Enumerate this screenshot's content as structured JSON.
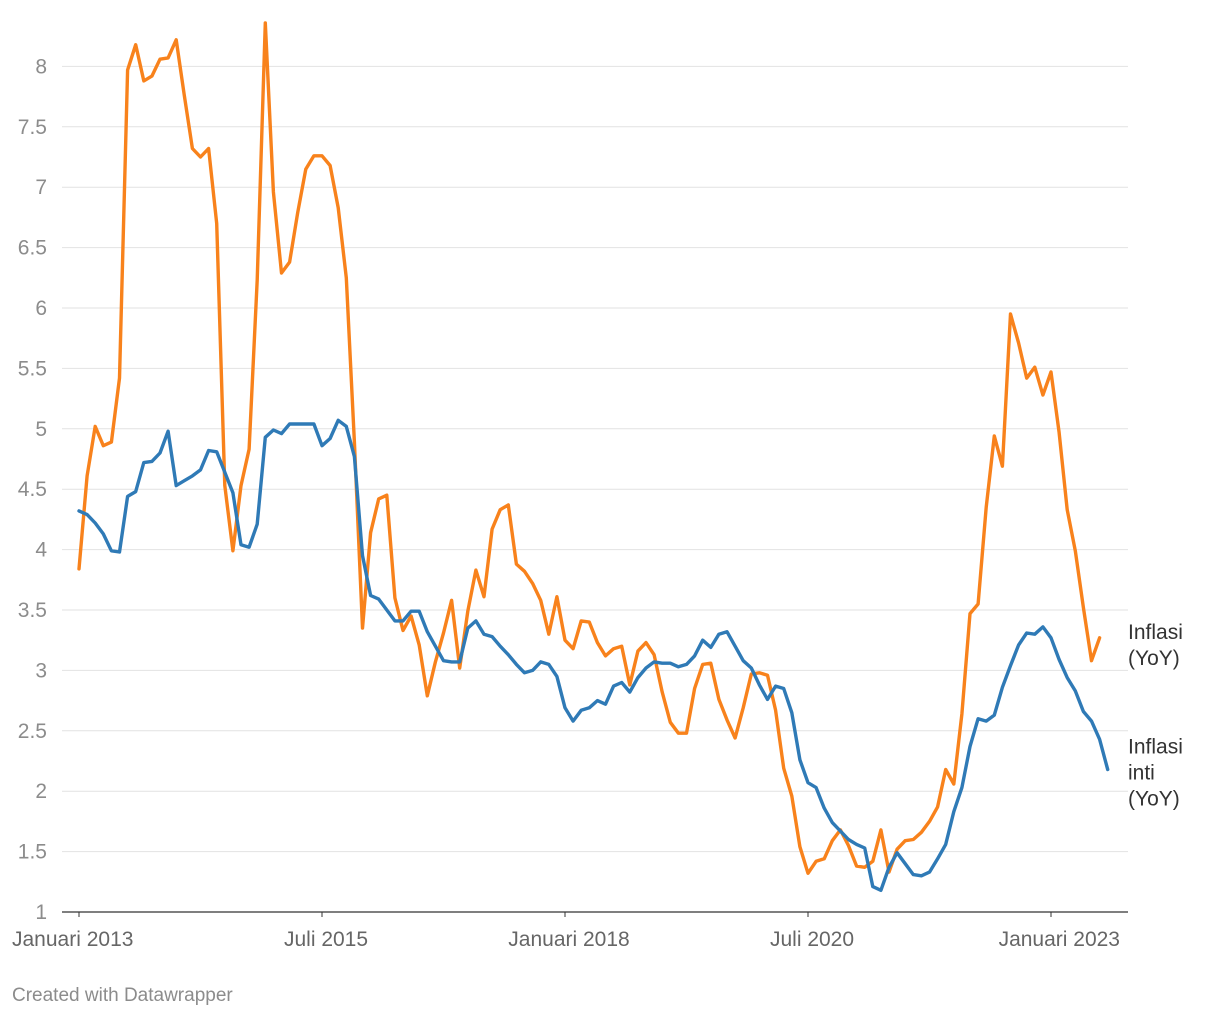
{
  "chart_data": {
    "type": "line",
    "title": "",
    "xlabel": "",
    "ylabel": "",
    "ylim": [
      1,
      8.3
    ],
    "yticks": [
      1,
      1.5,
      2,
      2.5,
      3,
      3.5,
      4,
      4.5,
      5,
      5.5,
      6,
      6.5,
      7,
      7.5,
      8
    ],
    "ytick_labels": [
      "1",
      "1.5",
      "2",
      "2.5",
      "3",
      "3.5",
      "4",
      "4.5",
      "5",
      "5.5",
      "6",
      "6.5",
      "7",
      "7.5",
      "8"
    ],
    "x_start": "2013-01",
    "x_end": "2023-06",
    "xticks": [
      {
        "month_index": 0,
        "label": "Januari 2013"
      },
      {
        "month_index": 30,
        "label": "Juli 2015"
      },
      {
        "month_index": 60,
        "label": "Januari 2018"
      },
      {
        "month_index": 90,
        "label": "Juli 2020"
      },
      {
        "month_index": 120,
        "label": "Januari 2023"
      }
    ],
    "grid": true,
    "series": [
      {
        "name": "Inflasi (YoY)",
        "label_lines": [
          "Inflasi",
          "(YoY)"
        ],
        "color": "#f8821c",
        "values": [
          3.84,
          4.61,
          5.02,
          4.86,
          4.89,
          5.42,
          7.97,
          8.18,
          7.88,
          7.92,
          8.06,
          8.07,
          8.22,
          7.76,
          7.32,
          7.25,
          7.32,
          6.7,
          4.53,
          3.99,
          4.53,
          4.83,
          6.23,
          8.36,
          6.96,
          6.29,
          6.38,
          6.79,
          7.15,
          7.26,
          7.26,
          7.18,
          6.83,
          6.25,
          4.89,
          3.35,
          4.14,
          4.42,
          4.45,
          3.6,
          3.33,
          3.45,
          3.21,
          2.79,
          3.07,
          3.31,
          3.58,
          3.02,
          3.49,
          3.83,
          3.61,
          4.17,
          4.33,
          4.37,
          3.88,
          3.82,
          3.72,
          3.58,
          3.3,
          3.61,
          3.25,
          3.18,
          3.41,
          3.4,
          3.23,
          3.12,
          3.18,
          3.2,
          2.88,
          3.16,
          3.23,
          3.13,
          2.82,
          2.57,
          2.48,
          2.48,
          2.85,
          3.05,
          3.06,
          2.76,
          2.59,
          2.44,
          2.69,
          2.97,
          2.98,
          2.96,
          2.67,
          2.19,
          1.96,
          1.54,
          1.32,
          1.42,
          1.44,
          1.59,
          1.68,
          1.55,
          1.38,
          1.37,
          1.42,
          1.68,
          1.33,
          1.52,
          1.59,
          1.6,
          1.66,
          1.75,
          1.87,
          2.18,
          2.06,
          2.64,
          3.47,
          3.55,
          4.35,
          4.94,
          4.69,
          5.95,
          5.71,
          5.42,
          5.51,
          5.28,
          5.47,
          4.97,
          4.33,
          3.99,
          3.52,
          3.08,
          3.27
        ]
      },
      {
        "name": "Inflasi inti (YoY)",
        "label_lines": [
          "Inflasi",
          "inti",
          "(YoY)"
        ],
        "color": "#2f7ab6",
        "values": [
          4.32,
          4.29,
          4.22,
          4.13,
          3.99,
          3.98,
          4.44,
          4.48,
          4.72,
          4.73,
          4.8,
          4.98,
          4.53,
          4.57,
          4.61,
          4.66,
          4.82,
          4.81,
          4.64,
          4.47,
          4.04,
          4.02,
          4.21,
          4.93,
          4.99,
          4.96,
          5.04,
          5.04,
          5.04,
          5.04,
          4.86,
          4.92,
          5.07,
          5.02,
          4.77,
          3.95,
          3.62,
          3.59,
          3.5,
          3.41,
          3.41,
          3.49,
          3.49,
          3.32,
          3.2,
          3.08,
          3.07,
          3.07,
          3.35,
          3.41,
          3.3,
          3.28,
          3.2,
          3.13,
          3.05,
          2.98,
          3.0,
          3.07,
          3.05,
          2.95,
          2.69,
          2.58,
          2.67,
          2.69,
          2.75,
          2.72,
          2.87,
          2.9,
          2.82,
          2.94,
          3.02,
          3.07,
          3.06,
          3.06,
          3.03,
          3.05,
          3.12,
          3.25,
          3.19,
          3.3,
          3.32,
          3.2,
          3.08,
          3.02,
          2.88,
          2.76,
          2.87,
          2.85,
          2.65,
          2.26,
          2.07,
          2.03,
          1.86,
          1.74,
          1.67,
          1.6,
          1.56,
          1.53,
          1.21,
          1.18,
          1.37,
          1.49,
          1.4,
          1.31,
          1.3,
          1.33,
          1.44,
          1.56,
          1.83,
          2.03,
          2.37,
          2.6,
          2.58,
          2.63,
          2.86,
          3.04,
          3.21,
          3.31,
          3.3,
          3.36,
          3.27,
          3.09,
          2.94,
          2.83,
          2.66,
          2.58,
          2.43,
          2.18
        ]
      }
    ]
  },
  "footer": {
    "credit": "Created with Datawrapper"
  }
}
